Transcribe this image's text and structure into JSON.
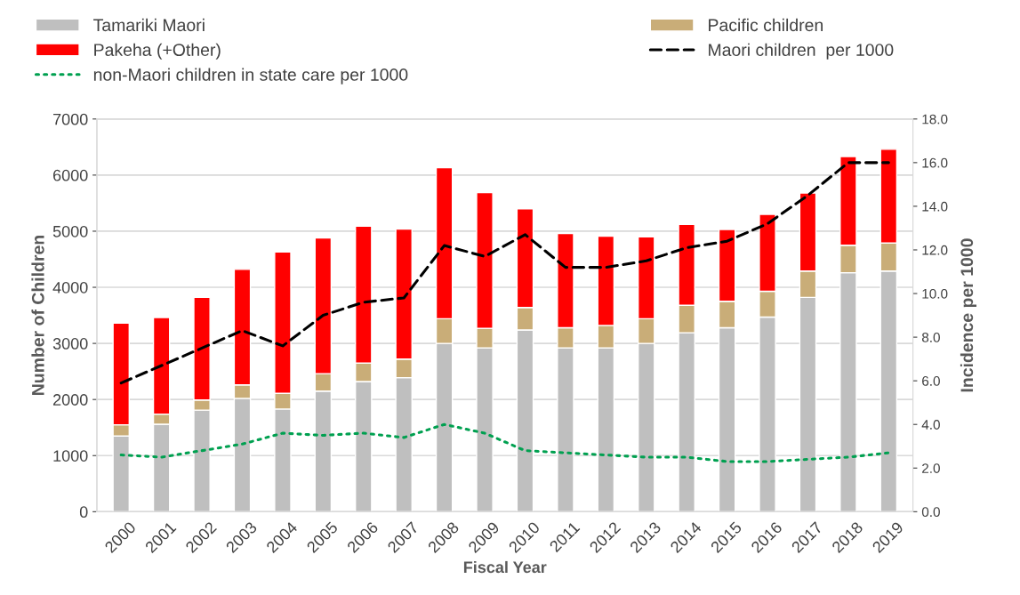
{
  "chart_data": {
    "type": "bar",
    "stacked": true,
    "xlabel": "Fiscal Year",
    "ylabel": "Number of Children",
    "y2label": "Incidence per 1000",
    "categories": [
      "2000",
      "2001",
      "2002",
      "2003",
      "2004",
      "2005",
      "2006",
      "2007",
      "2008",
      "2009",
      "2010",
      "2011",
      "2012",
      "2013",
      "2014",
      "2015",
      "2016",
      "2017",
      "2018",
      "2019"
    ],
    "series": [
      {
        "name": "Tamariki Maori",
        "color": "#bfbfbf",
        "values": [
          1350,
          1560,
          1810,
          2020,
          1830,
          2150,
          2320,
          2390,
          3000,
          2920,
          3240,
          2920,
          2920,
          3000,
          3190,
          3280,
          3470,
          3820,
          4260,
          4290
        ]
      },
      {
        "name": "Pacific children",
        "color": "#c9ad78",
        "values": [
          200,
          180,
          180,
          240,
          280,
          310,
          330,
          330,
          440,
          350,
          400,
          360,
          400,
          440,
          490,
          470,
          460,
          470,
          490,
          500
        ]
      },
      {
        "name": "Pakeha (+Other)",
        "color": "#ff0000",
        "values": [
          1810,
          1720,
          1830,
          2060,
          2520,
          2420,
          2440,
          2320,
          2690,
          2420,
          1760,
          1680,
          1590,
          1460,
          1440,
          1280,
          1370,
          1390,
          1580,
          1670
        ]
      },
      {
        "name": "Maori children  per 1000",
        "type": "line",
        "axis": "y2",
        "color": "#000000",
        "line_style": "dashed",
        "values": [
          5.9,
          6.7,
          7.5,
          8.3,
          7.6,
          9.0,
          9.6,
          9.8,
          12.2,
          11.7,
          12.7,
          11.2,
          11.2,
          11.5,
          12.1,
          12.4,
          13.2,
          14.5,
          16.0,
          16.0
        ]
      },
      {
        "name": "non-Maori children in state care per 1000",
        "type": "line",
        "axis": "y2",
        "color": "#00a050",
        "line_style": "dotted",
        "values": [
          2.6,
          2.5,
          2.8,
          3.1,
          3.6,
          3.5,
          3.6,
          3.4,
          4.0,
          3.6,
          2.8,
          2.7,
          2.6,
          2.5,
          2.5,
          2.3,
          2.3,
          2.4,
          2.5,
          2.7
        ]
      }
    ],
    "ylim": [
      0,
      7000
    ],
    "yticks": [
      0,
      1000,
      2000,
      3000,
      4000,
      5000,
      6000,
      7000
    ],
    "y2lim": [
      0,
      18
    ],
    "y2ticks": [
      {
        "value": 0,
        "label": "0.0"
      },
      {
        "value": 2,
        "label": "2.0"
      },
      {
        "value": 4,
        "label": "4.0"
      },
      {
        "value": 6,
        "label": "6.0"
      },
      {
        "value": 8,
        "label": "8.0"
      },
      {
        "value": 10,
        "label": "10.0"
      },
      {
        "value": 12,
        "label": "12.0"
      },
      {
        "value": 14,
        "label": "14.0"
      },
      {
        "value": 16,
        "label": "16.0"
      },
      {
        "value": 18,
        "label": "18.0"
      }
    ],
    "grid": "y",
    "legend": "top"
  }
}
